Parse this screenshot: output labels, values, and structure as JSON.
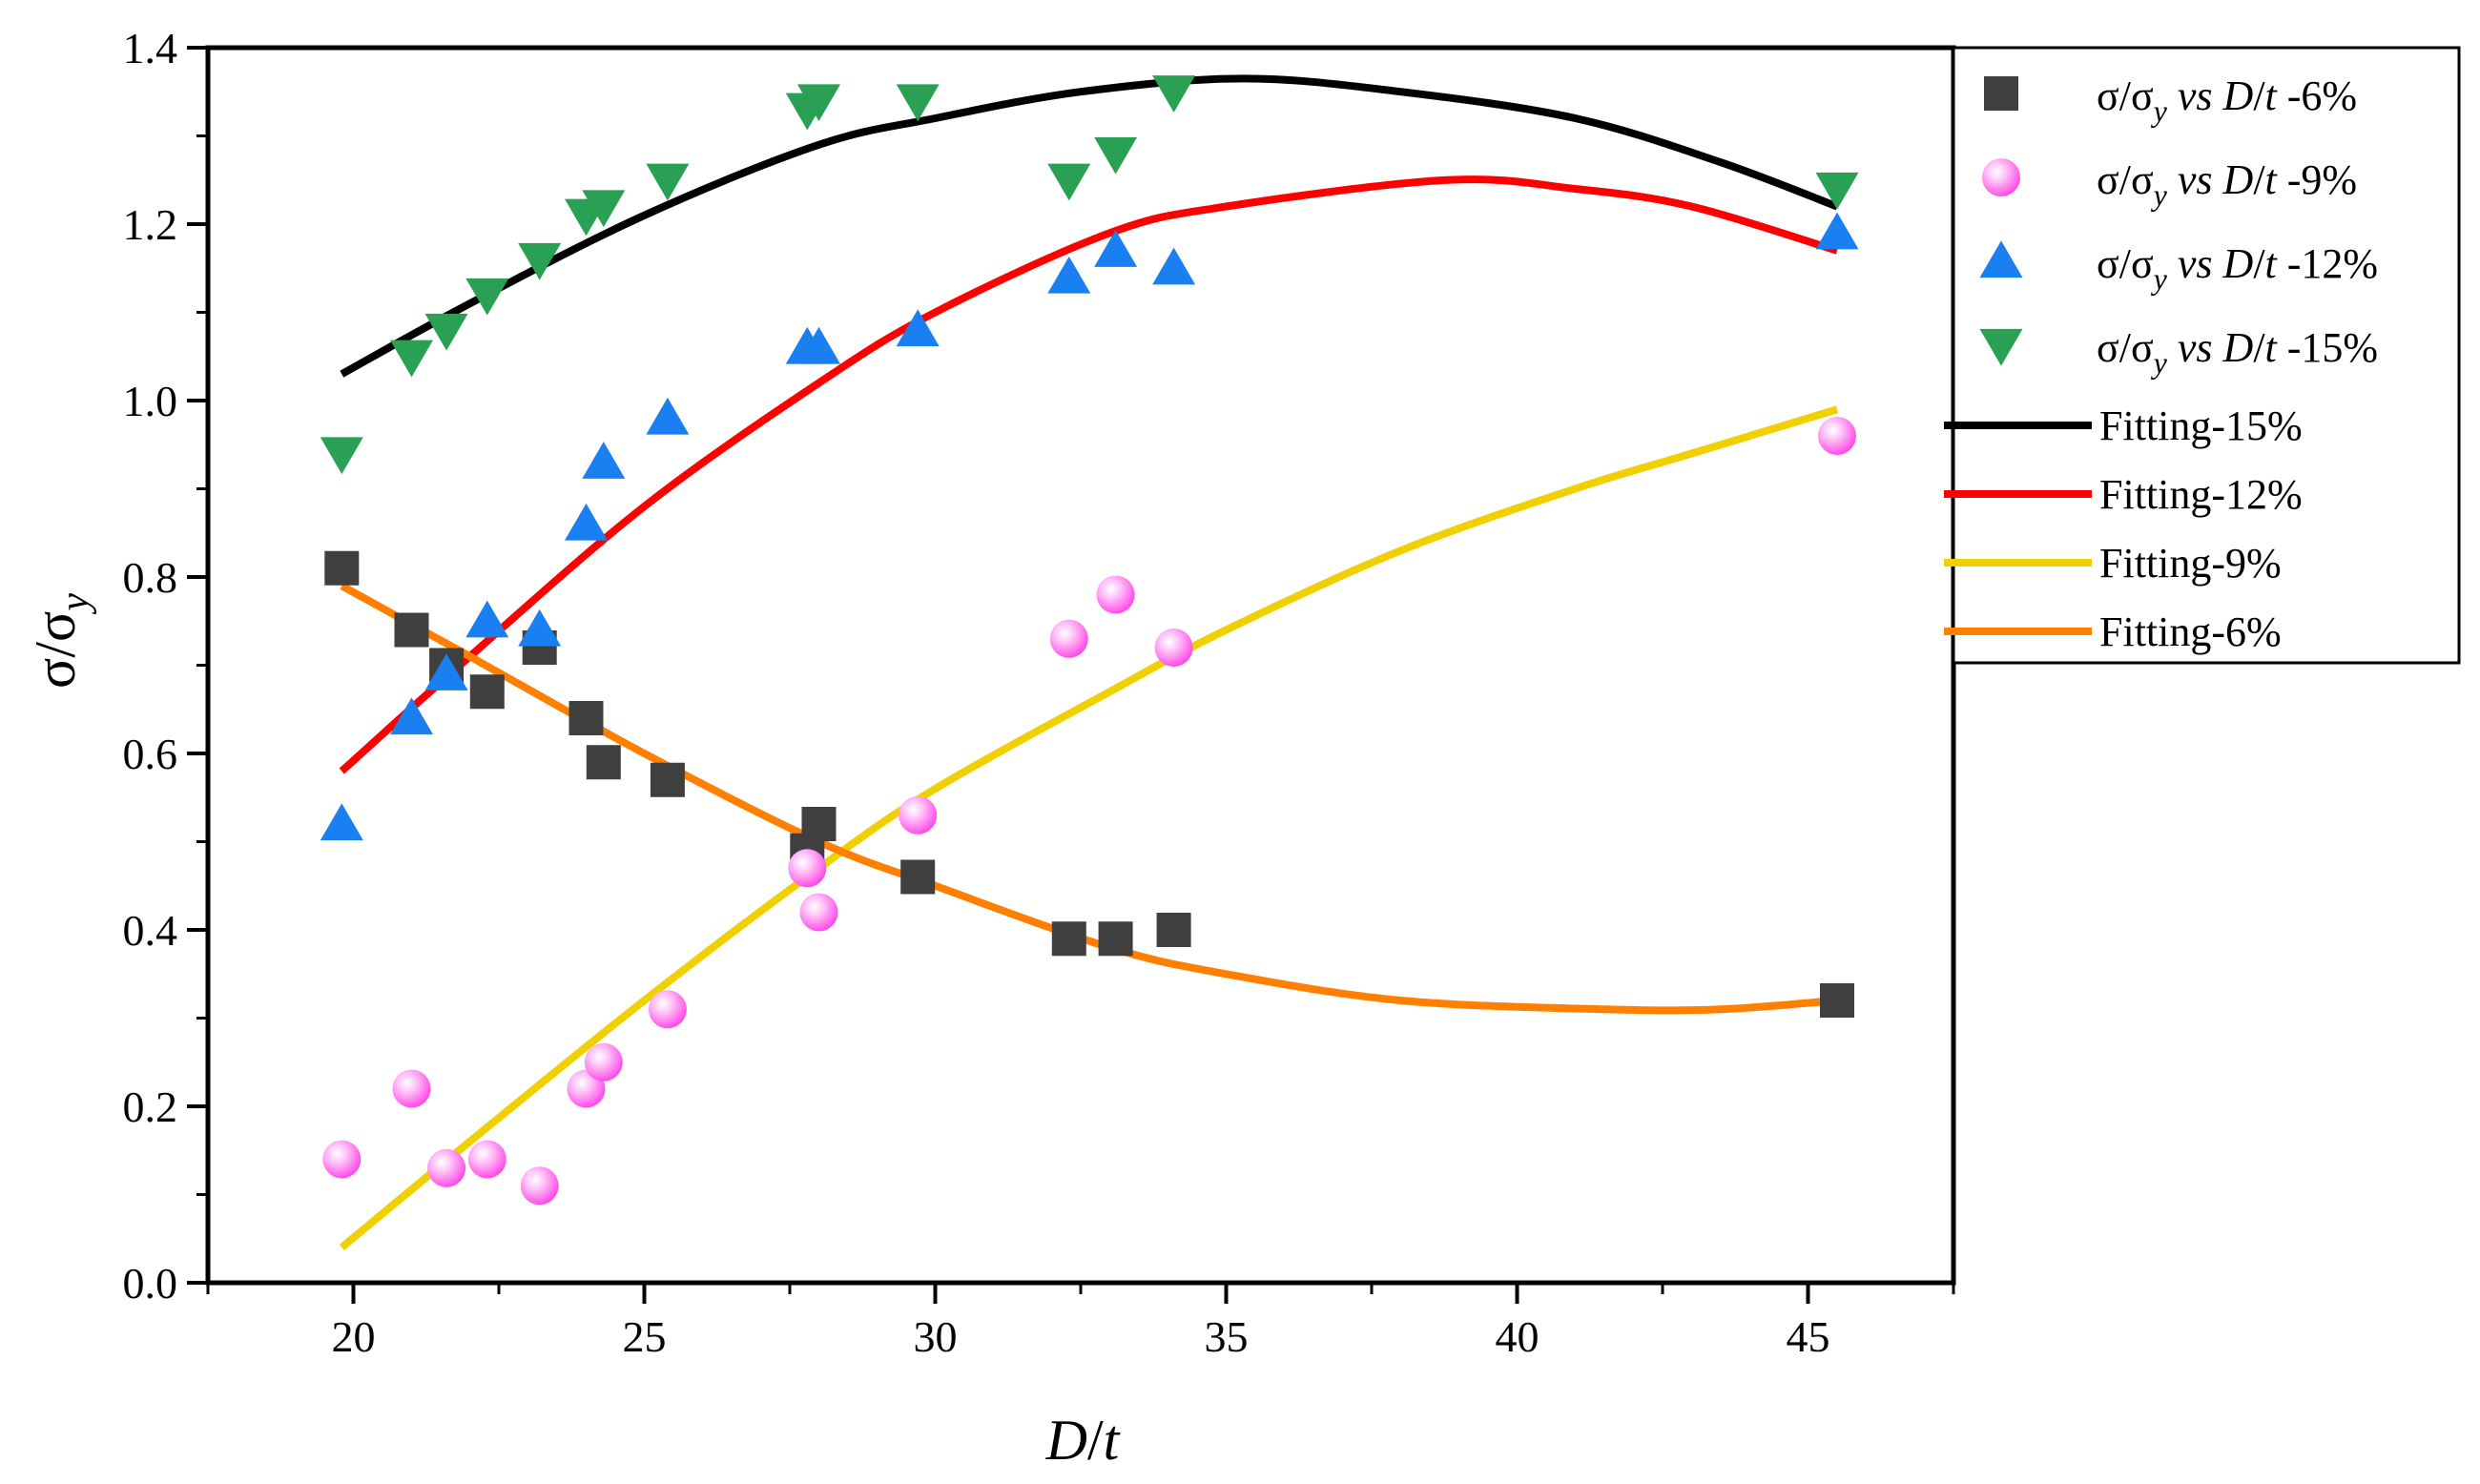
{
  "chart_data": {
    "type": "scatter",
    "xlabel": {
      "main": "D",
      "sep": "/",
      "italic": "t"
    },
    "ylabel": {
      "main": "σ/σ",
      "sub": "y"
    },
    "xlim": [
      17.5,
      47.5
    ],
    "ylim": [
      0.0,
      1.4
    ],
    "xticks": [
      "20",
      "25",
      "30",
      "35",
      "40",
      "45"
    ],
    "yticks": [
      "0.0",
      "0.2",
      "0.4",
      "0.6",
      "0.8",
      "1.0",
      "1.2",
      "1.4"
    ],
    "grid": false,
    "legend_position": "top-right-outside",
    "x": [
      19.8,
      21.0,
      21.6,
      22.3,
      23.2,
      24.0,
      24.3,
      25.4,
      27.8,
      28.0,
      29.7,
      32.3,
      33.1,
      34.1,
      45.5
    ],
    "series": [
      {
        "name": "σ/σy vs D/t -6%",
        "legend": {
          "pre": "σ/σ",
          "sub": "y",
          "vs": " vs ",
          "dt": "D",
          "slash": "/",
          "t": "t",
          "suf": " -6%"
        },
        "marker": "square",
        "color": "#3f3f3f",
        "values": [
          0.81,
          0.74,
          0.7,
          0.67,
          0.72,
          0.64,
          0.59,
          0.57,
          0.49,
          0.52,
          0.46,
          0.39,
          0.39,
          0.4,
          0.32
        ]
      },
      {
        "name": "σ/σy vs D/t -9%",
        "legend": {
          "pre": "σ/σ",
          "sub": "y",
          "vs": " vs ",
          "dt": "D",
          "slash": "/",
          "t": "t",
          "suf": " -9%"
        },
        "marker": "sphere",
        "color": "#ff6ef0",
        "values": [
          0.14,
          0.22,
          0.13,
          0.14,
          0.11,
          0.22,
          0.25,
          0.31,
          0.47,
          0.42,
          0.53,
          0.73,
          0.78,
          0.72,
          0.96
        ]
      },
      {
        "name": "σ/σy vs D/t -12%",
        "legend": {
          "pre": "σ/σ",
          "sub": "y",
          "vs": " vs ",
          "dt": "D",
          "slash": "/",
          "t": "t",
          "suf": " -12%"
        },
        "marker": "triangle-up",
        "color": "#1a7ff0",
        "values": [
          0.52,
          0.64,
          0.69,
          0.75,
          0.74,
          0.86,
          0.93,
          0.98,
          1.06,
          1.06,
          1.08,
          1.14,
          1.17,
          1.15,
          1.19
        ]
      },
      {
        "name": "σ/σy vs D/t -15%",
        "legend": {
          "pre": "σ/σ",
          "sub": "y",
          "vs": " vs ",
          "dt": "D",
          "slash": "/",
          "t": "t",
          "suf": " -15%"
        },
        "marker": "triangle-down",
        "color": "#2aa055",
        "values": [
          0.94,
          1.05,
          1.08,
          1.12,
          1.16,
          1.21,
          1.22,
          1.25,
          1.33,
          1.34,
          1.34,
          1.25,
          1.28,
          1.35,
          1.24
        ]
      }
    ],
    "fits": [
      {
        "name": "Fitting-15%",
        "color": "#000000",
        "x": [
          19.8,
          22.0,
          25.0,
          28.0,
          30.0,
          32.5,
          35.3,
          38.0,
          41.0,
          43.5,
          45.5
        ],
        "values": [
          1.03,
          1.11,
          1.21,
          1.29,
          1.32,
          1.35,
          1.365,
          1.35,
          1.32,
          1.27,
          1.22
        ]
      },
      {
        "name": "Fitting-12%",
        "color": "#ff0000",
        "x": [
          19.8,
          22.0,
          25.0,
          28.0,
          30.0,
          33.0,
          35.0,
          38.8,
          41.0,
          43.0,
          45.5
        ],
        "values": [
          0.58,
          0.71,
          0.88,
          1.02,
          1.1,
          1.19,
          1.22,
          1.25,
          1.24,
          1.22,
          1.17
        ]
      },
      {
        "name": "Fitting-9%",
        "color": "#f0d000",
        "x": [
          19.8,
          22.0,
          25.0,
          28.0,
          30.0,
          33.0,
          35.0,
          38.0,
          41.0,
          43.0,
          45.5
        ],
        "values": [
          0.04,
          0.16,
          0.32,
          0.47,
          0.56,
          0.67,
          0.74,
          0.83,
          0.9,
          0.94,
          0.99
        ]
      },
      {
        "name": "Fitting-6%",
        "color": "#ff7f00",
        "x": [
          19.8,
          22.0,
          25.0,
          28.0,
          30.0,
          33.0,
          35.0,
          38.0,
          41.5,
          43.5,
          45.5
        ],
        "values": [
          0.79,
          0.71,
          0.6,
          0.5,
          0.45,
          0.38,
          0.35,
          0.32,
          0.31,
          0.31,
          0.32
        ]
      }
    ]
  }
}
